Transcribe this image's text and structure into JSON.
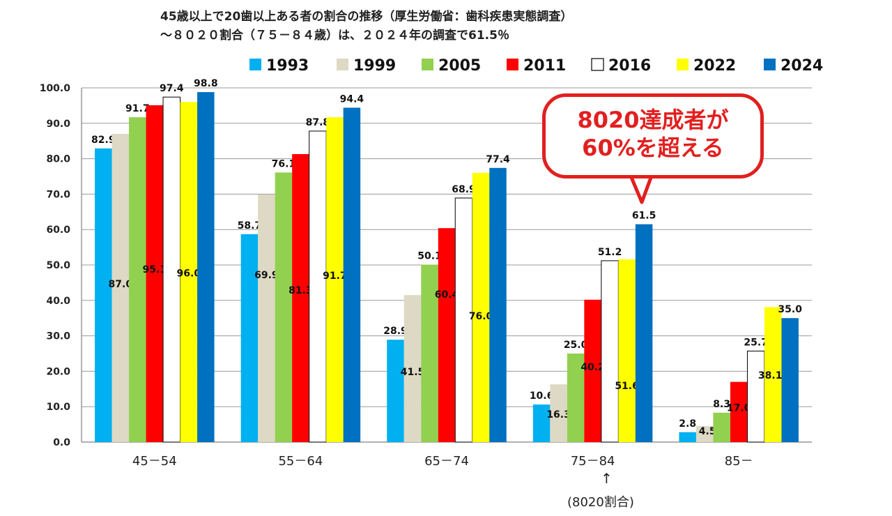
{
  "title_lines": [
    "45歳以上で20歯以上ある者の割合の推移（厚生労働省：歯科疾患実態調査）",
    "～８０２０割合（７５－８４歳）は、２０２４年の調査で61.5％"
  ],
  "callout": {
    "line1": "8020達成者が",
    "line2": "60%を超える"
  },
  "note": {
    "arrow": "↑",
    "label": "(8020割合)"
  },
  "chart_data": {
    "type": "bar",
    "categories": [
      "45－54",
      "55－64",
      "65－74",
      "75－84",
      "85－"
    ],
    "ylim": [
      0,
      100
    ],
    "yticks": [
      "0.0",
      "10.0",
      "20.0",
      "30.0",
      "40.0",
      "50.0",
      "60.0",
      "70.0",
      "80.0",
      "90.0",
      "100.0"
    ],
    "grid": true,
    "legend_position": "top",
    "series": [
      {
        "name": "1993",
        "color": "#00b0f0",
        "values": [
          82.9,
          58.7,
          28.9,
          10.6,
          2.8
        ],
        "labels": [
          "82.9",
          "58.7",
          "28.9",
          "10.6",
          "2.8"
        ]
      },
      {
        "name": "1999",
        "color": "#ddd9c4",
        "values": [
          87.0,
          69.9,
          41.5,
          16.3,
          4.5
        ],
        "labels": [
          "87.0",
          "69.9",
          "41.5",
          "16.3",
          "4.5"
        ]
      },
      {
        "name": "2005",
        "color": "#92d050",
        "values": [
          91.7,
          76.1,
          50.1,
          25.0,
          8.3
        ],
        "labels": [
          "91.7",
          "76.1",
          "50.1",
          "25.0",
          "8.3"
        ]
      },
      {
        "name": "2011",
        "color": "#ff0000",
        "values": [
          95.1,
          81.3,
          60.4,
          40.2,
          17.0
        ],
        "labels": [
          "95.1",
          "81.3",
          "60.4",
          "40.2",
          "17.0"
        ]
      },
      {
        "name": "2016",
        "color": "#ffffff",
        "values": [
          97.4,
          87.8,
          68.9,
          51.2,
          25.7
        ],
        "labels": [
          "97.4",
          "87.8",
          "68.9",
          "51.2",
          "25.7"
        ]
      },
      {
        "name": "2022",
        "color": "#ffff00",
        "values": [
          96.0,
          91.7,
          76.0,
          51.6,
          38.1
        ],
        "labels": [
          "96.0",
          "91.7",
          "76.0",
          "51.6",
          "38.1"
        ]
      },
      {
        "name": "2024",
        "color": "#0070c0",
        "values": [
          98.8,
          94.4,
          77.4,
          61.5,
          35.0
        ],
        "labels": [
          "98.8",
          "94.4",
          "77.4",
          "61.5",
          "35.0"
        ]
      }
    ]
  }
}
